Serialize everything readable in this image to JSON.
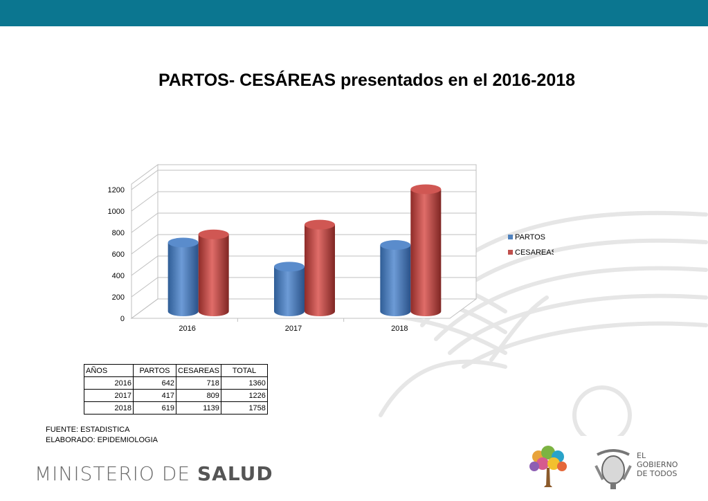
{
  "chart_data": {
    "type": "bar",
    "title": "PARTOS- CESÁREAS presentados en el 2016-2018",
    "categories": [
      "2016",
      "2017",
      "2018"
    ],
    "series": [
      {
        "name": "PARTOS",
        "values": [
          642,
          417,
          619
        ]
      },
      {
        "name": "CESAREAS",
        "values": [
          718,
          809,
          1139
        ]
      }
    ],
    "yticks": [
      "0",
      "200",
      "400",
      "600",
      "800",
      "1000",
      "1200"
    ],
    "ylim": [
      0,
      1200
    ],
    "grid": true,
    "legend_position": "right",
    "colors": {
      "PARTOS": "#4f81bd",
      "CESAREAS": "#c0504d"
    }
  },
  "header": {
    "bar_color": "#0b7690"
  },
  "table": {
    "headers": [
      "AÑOS",
      "PARTOS",
      "CESAREAS",
      "TOTAL"
    ],
    "rows": [
      [
        "2016",
        "642",
        "718",
        "1360"
      ],
      [
        "2017",
        "417",
        "809",
        "1226"
      ],
      [
        "2018",
        "619",
        "1139",
        "1758"
      ]
    ]
  },
  "notes": {
    "source": "FUENTE: ESTADISTICA",
    "elaborated": "ELABORADO: EPIDEMIOLOGIA"
  },
  "footer": {
    "ministry_light": "MINISTERIO DE ",
    "ministry_bold": "SALUD",
    "gov_line1": "EL",
    "gov_line2": "GOBIERNO",
    "gov_line3": "DE TODOS"
  }
}
